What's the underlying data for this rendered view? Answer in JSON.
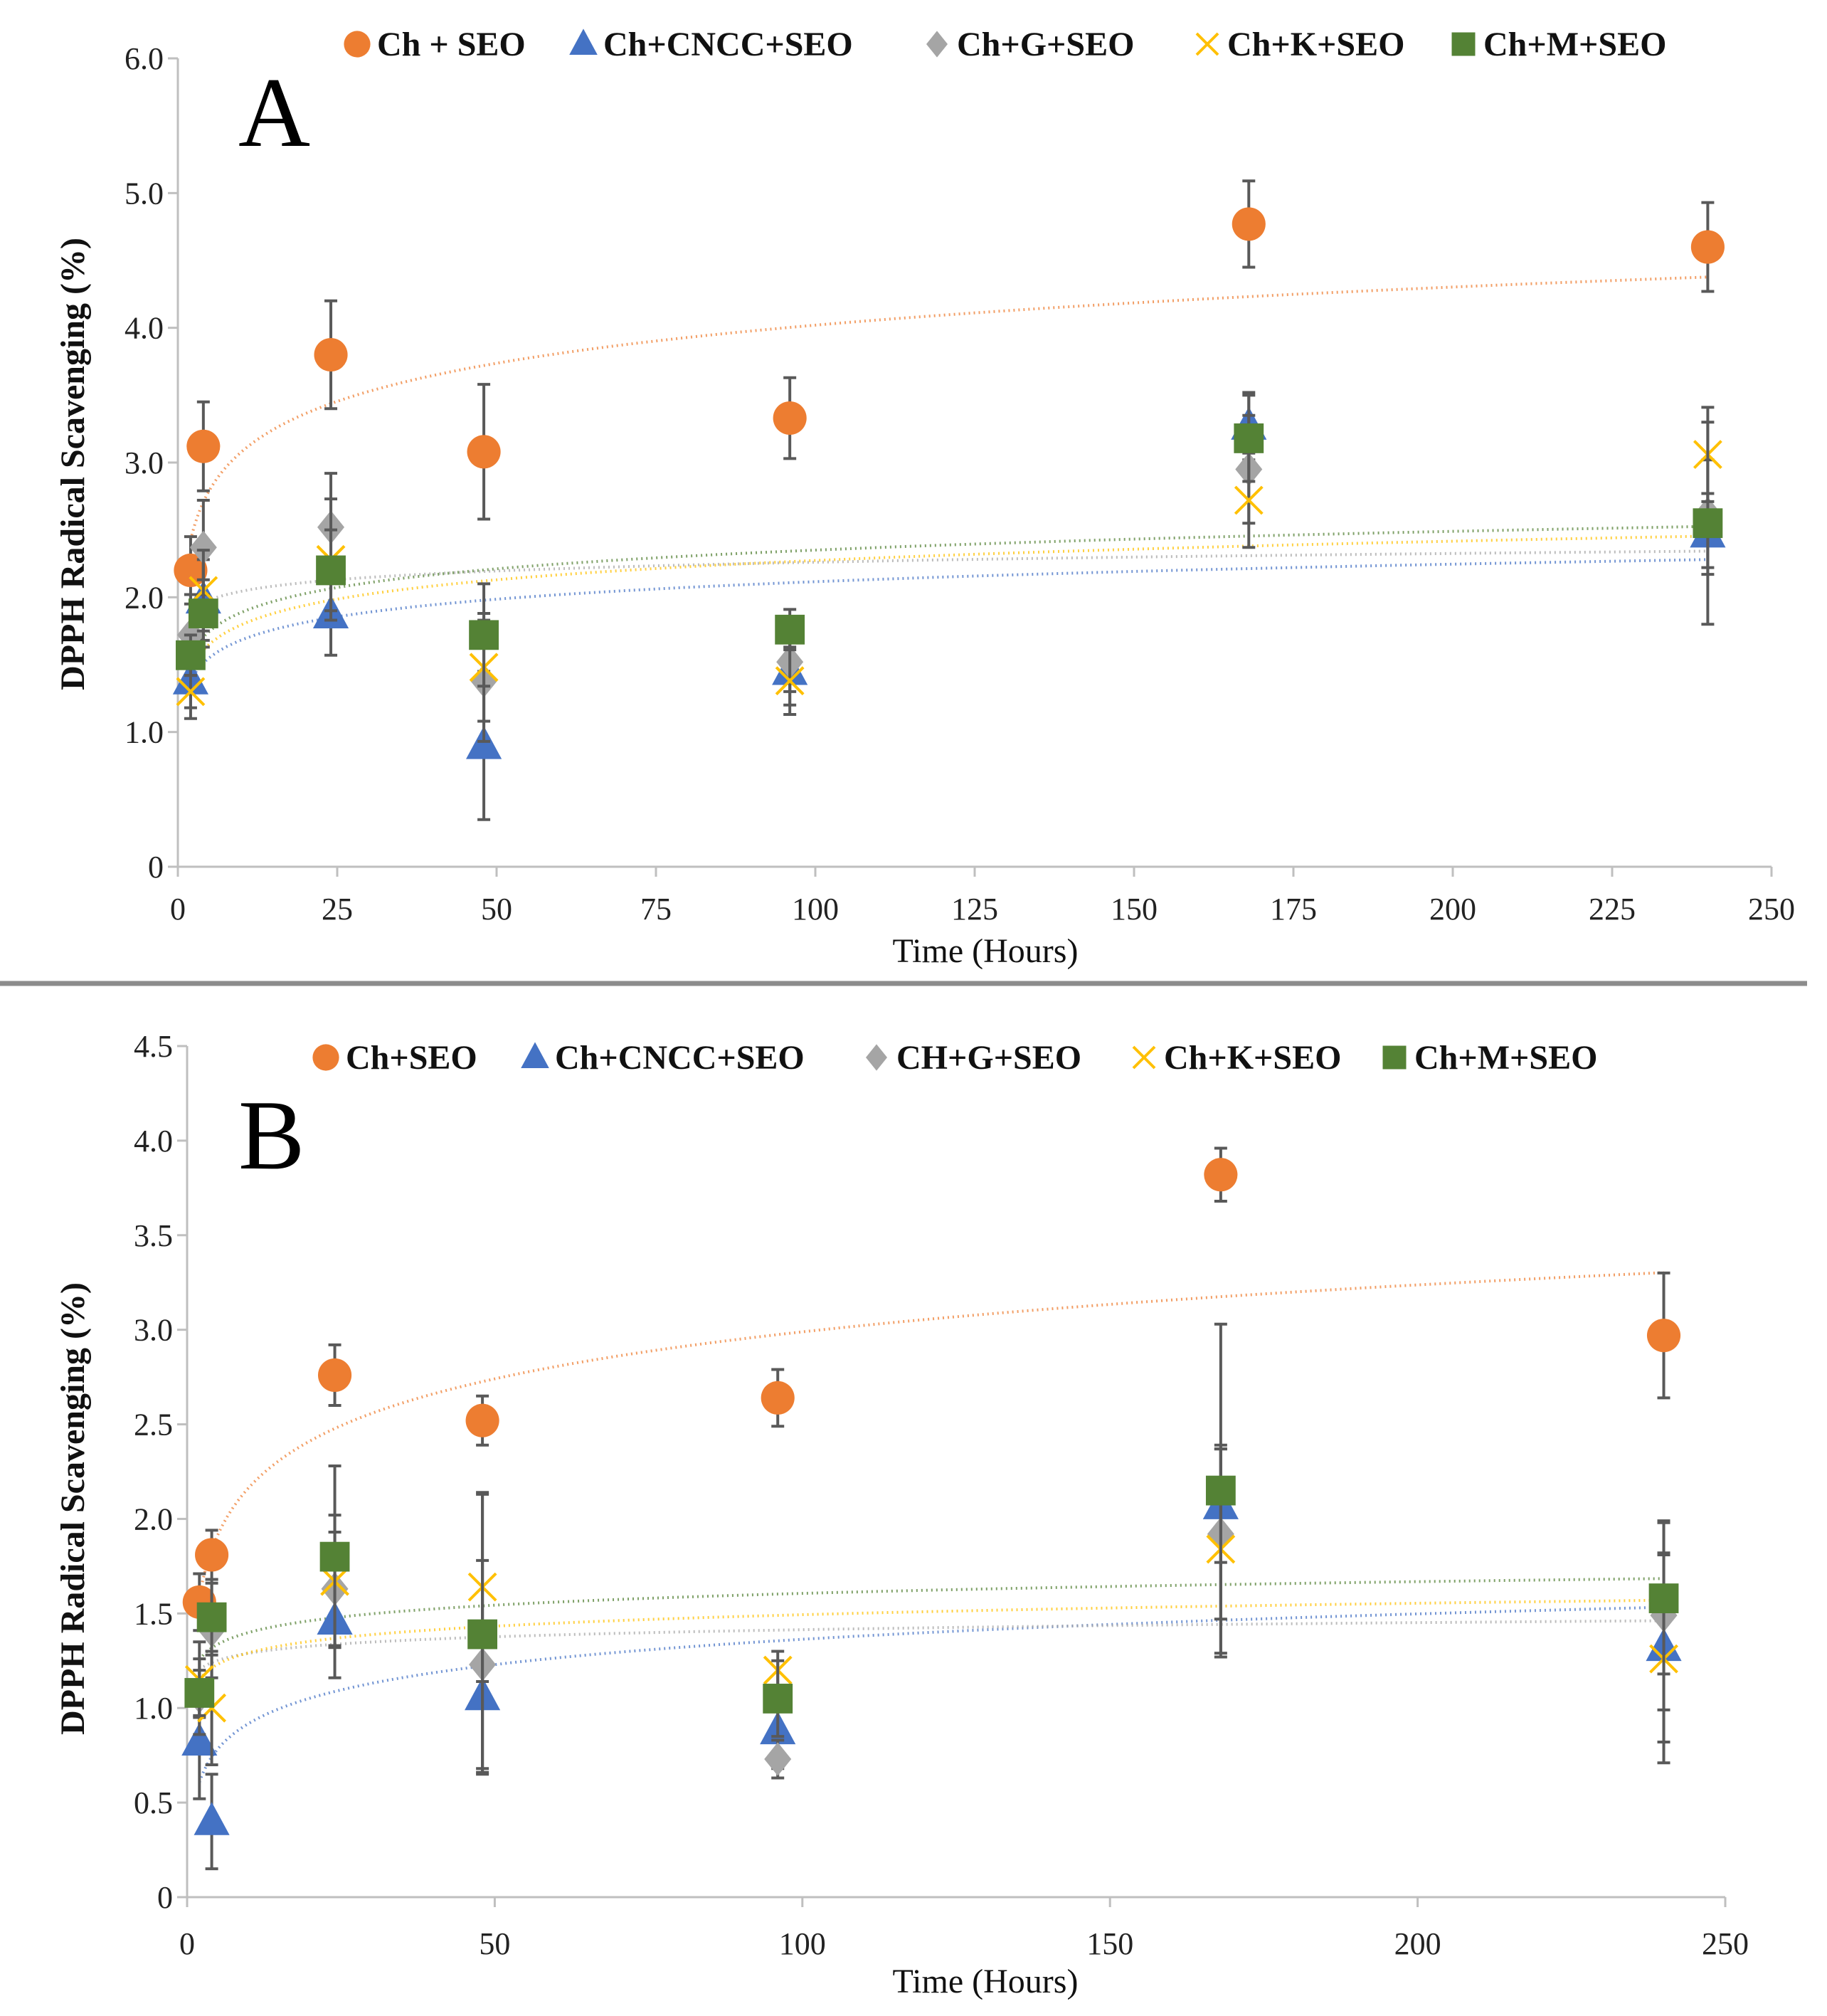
{
  "chart_data": [
    {
      "type": "scatter",
      "panel_label": "A",
      "xlabel": "Time (Hours)",
      "ylabel": "DPPH Radical  Scavenging (%)",
      "xlim": [
        0,
        250
      ],
      "ylim": [
        0,
        6
      ],
      "x_ticks": [
        0,
        25,
        50,
        75,
        100,
        125,
        150,
        175,
        200,
        225,
        250
      ],
      "y_ticks": [
        0,
        1,
        2,
        3,
        4,
        5,
        6
      ],
      "y_tick_labels": [
        "0",
        "1.0",
        "2.0",
        "3.0",
        "4.0",
        "5.0",
        "6.0"
      ],
      "legend_position": "top",
      "trendline": "logarithmic (dotted)",
      "series": [
        {
          "name": "Ch + SEO",
          "marker": "circle",
          "color": "#ED7D31",
          "x": [
            2,
            4,
            24,
            48,
            96,
            168,
            240
          ],
          "y": [
            2.2,
            3.12,
            3.8,
            3.08,
            3.33,
            4.77,
            4.6
          ],
          "err": [
            0.25,
            0.33,
            0.4,
            0.5,
            0.3,
            0.32,
            0.33
          ]
        },
        {
          "name": "Ch+CNCC+SEO",
          "marker": "triangle",
          "color": "#4472C4",
          "x": [
            2,
            4,
            24,
            48,
            96,
            168,
            240
          ],
          "y": [
            1.38,
            1.98,
            1.87,
            0.9,
            1.45,
            3.27,
            2.47
          ],
          "err": [
            0.2,
            0.3,
            0.3,
            0.55,
            0.25,
            0.25,
            0.3
          ]
        },
        {
          "name": "Ch+G+SEO",
          "marker": "diamond",
          "color": "#A5A5A5",
          "x": [
            2,
            4,
            24,
            48,
            96,
            168,
            240
          ],
          "y": [
            1.72,
            2.37,
            2.52,
            1.38,
            1.52,
            2.95,
            2.62
          ],
          "err": [
            0.3,
            0.35,
            0.4,
            0.45,
            0.22,
            0.4,
            0.4
          ]
        },
        {
          "name": "Ch+K+SEO",
          "marker": "x",
          "color": "#FFC000",
          "x": [
            2,
            4,
            24,
            48,
            96,
            168,
            240
          ],
          "y": [
            1.3,
            2.05,
            2.28,
            1.48,
            1.38,
            2.72,
            3.06
          ],
          "err": [
            0.2,
            0.3,
            0.45,
            0.4,
            0.25,
            0.35,
            0.35
          ]
        },
        {
          "name": "Ch+M+SEO",
          "marker": "square",
          "color": "#548235",
          "x": [
            2,
            4,
            24,
            48,
            96,
            168,
            240
          ],
          "y": [
            1.57,
            1.88,
            2.2,
            1.72,
            1.76,
            3.18,
            2.55
          ],
          "err": [
            0.15,
            0.25,
            0.3,
            0.38,
            0.15,
            0.32,
            0.75
          ]
        }
      ]
    },
    {
      "type": "scatter",
      "panel_label": "B",
      "xlabel": "Time (Hours)",
      "ylabel": "DPPH Radical  Scavenging (%)",
      "xlim": [
        0,
        250
      ],
      "ylim": [
        0,
        4.5
      ],
      "x_ticks": [
        0,
        50,
        100,
        150,
        200,
        250
      ],
      "y_ticks": [
        0,
        0.5,
        1,
        1.5,
        2,
        2.5,
        3,
        3.5,
        4,
        4.5
      ],
      "y_tick_labels": [
        "0",
        "0.5",
        "1.0",
        "1.5",
        "2.0",
        "2.5",
        "3.0",
        "3.5",
        "4.0",
        "4.5"
      ],
      "legend_position": "top",
      "trendline": "logarithmic (dotted)",
      "series": [
        {
          "name": "Ch+SEO",
          "marker": "circle",
          "color": "#ED7D31",
          "x": [
            2,
            4,
            24,
            48,
            96,
            168,
            240
          ],
          "y": [
            1.56,
            1.81,
            2.76,
            2.52,
            2.64,
            3.82,
            2.97
          ],
          "err": [
            0.15,
            0.13,
            0.16,
            0.13,
            0.15,
            0.14,
            0.33
          ]
        },
        {
          "name": "Ch+CNCC+SEO",
          "marker": "triangle",
          "color": "#4472C4",
          "x": [
            2,
            4,
            24,
            48,
            96,
            168,
            240
          ],
          "y": [
            0.82,
            0.4,
            1.46,
            1.06,
            0.88,
            2.07,
            1.32
          ],
          "err": [
            0.3,
            0.25,
            0.3,
            0.4,
            0.2,
            0.3,
            0.5
          ]
        },
        {
          "name": "CH+G+SEO",
          "marker": "diamond",
          "color": "#A5A5A5",
          "x": [
            2,
            4,
            24,
            48,
            96,
            168,
            240
          ],
          "y": [
            1.06,
            1.41,
            1.63,
            1.23,
            0.73,
            1.92,
            1.49
          ],
          "err": [
            0.2,
            0.25,
            0.3,
            0.55,
            0.1,
            0.45,
            0.5
          ]
        },
        {
          "name": "Ch+K+SEO",
          "marker": "x",
          "color": "#FFC000",
          "x": [
            2,
            4,
            24,
            48,
            96,
            168,
            240
          ],
          "y": [
            1.15,
            1.0,
            1.67,
            1.64,
            1.2,
            1.84,
            1.26
          ],
          "err": [
            0.2,
            0.3,
            0.35,
            0.5,
            0.1,
            0.55,
            0.55
          ]
        },
        {
          "name": "Ch+M+SEO",
          "marker": "square",
          "color": "#548235",
          "x": [
            2,
            4,
            24,
            48,
            96,
            168,
            240
          ],
          "y": [
            1.08,
            1.48,
            1.8,
            1.39,
            1.05,
            2.15,
            1.58
          ],
          "err": [
            0.12,
            0.2,
            0.48,
            0.74,
            0.2,
            0.88,
            0.4
          ]
        }
      ]
    }
  ]
}
